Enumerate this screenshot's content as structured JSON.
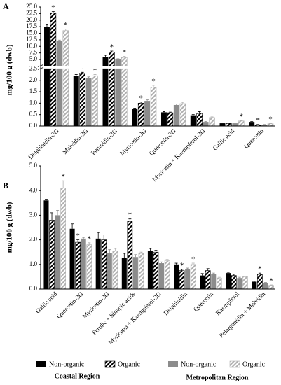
{
  "panel_labels": [
    "A",
    "B"
  ],
  "region_labels": [
    "Coastal Region",
    "Metropolitan Region"
  ],
  "significance_mark": "*",
  "chart_data": [
    {
      "type": "bar",
      "y_label": "mg/100 g (dwb)",
      "ybreak": 2.5,
      "categories": [
        "Delphinidin-3G",
        "Malvidin-3G",
        "Petunidin-3G",
        "Myricetin-3G",
        "Quercetin-3G",
        "Myricetin + Kaempferol-3G",
        "Gallic acid",
        "Quercetin"
      ],
      "series": [
        {
          "name": "Non-organic",
          "color": "#000000",
          "pattern": "solid",
          "values": [
            17.5,
            2.2,
            6.0,
            0.75,
            0.6,
            0.47,
            0.12,
            0.18
          ],
          "errors": [
            1.0,
            0.05,
            0.6,
            0.03,
            0.03,
            0.03,
            0.01,
            0.02
          ],
          "significant": []
        },
        {
          "name": "Organic",
          "color": "#000000",
          "pattern": "hatch",
          "values": [
            22.8,
            2.3,
            7.8,
            1.0,
            0.58,
            0.55,
            0.11,
            0.05
          ],
          "errors": [
            0.5,
            0.05,
            0.4,
            0.05,
            0.03,
            0.08,
            0.01,
            0.02
          ],
          "significant": [
            0,
            1,
            2,
            3,
            7
          ]
        },
        {
          "name": "Non-organic",
          "color": "#8c8c8c",
          "pattern": "solid",
          "values": [
            12.0,
            2.1,
            5.0,
            1.1,
            0.92,
            0.18,
            0.12,
            0.06
          ],
          "errors": [
            0.4,
            0.05,
            0.3,
            0.05,
            0.05,
            0.02,
            0.01,
            0.01
          ],
          "significant": []
        },
        {
          "name": "Organic",
          "color": "#b0b0b0",
          "pattern": "hatch",
          "values": [
            16.0,
            2.2,
            5.8,
            1.7,
            0.98,
            0.37,
            0.22,
            0.1
          ],
          "errors": [
            0.6,
            0.05,
            0.4,
            0.08,
            0.06,
            0.03,
            0.02,
            0.02
          ],
          "significant": [
            0,
            1,
            2,
            3,
            6,
            7
          ]
        }
      ],
      "ylim": [
        0,
        25
      ],
      "yticks": [
        {
          "value": 0,
          "label": "0.0"
        },
        0.5,
        {
          "value": 1,
          "label": "1.0"
        },
        1.5,
        {
          "value": 2,
          "label": "2.0"
        },
        2.5,
        {
          "value": 5,
          "label": "5.0"
        },
        7.5,
        {
          "value": 10,
          "label": "10.0"
        },
        12.5,
        {
          "value": 15,
          "label": "15.0"
        },
        17.5,
        {
          "value": 20,
          "label": "20.0"
        },
        22.5,
        {
          "value": 25,
          "label": "25.0"
        }
      ]
    },
    {
      "type": "bar",
      "y_label": "mg/100 g (dwb)",
      "categories": [
        "Gallic acid",
        "Quercetin-3G",
        "Myricetin-3G",
        "Ferulic + Sinapic acids",
        "Myricetin + Kaempferol-3G",
        "Delphinidin",
        "Quercetin",
        "Kaempferol",
        "Pelargonidin + Malvidin"
      ],
      "series": [
        {
          "name": "Non-organic",
          "color": "#000000",
          "pattern": "solid",
          "values": [
            3.6,
            2.45,
            2.05,
            1.25,
            1.55,
            1.0,
            0.55,
            0.65,
            0.3
          ],
          "errors": [
            0.05,
            0.2,
            0.25,
            0.2,
            0.1,
            0.05,
            0.08,
            0.03,
            0.03
          ],
          "significant": []
        },
        {
          "name": "Organic",
          "color": "#000000",
          "pattern": "hatch",
          "values": [
            2.8,
            1.9,
            2.0,
            2.75,
            1.5,
            0.75,
            0.75,
            0.55,
            0.6
          ],
          "errors": [
            0.3,
            0.1,
            0.2,
            0.1,
            0.08,
            0.05,
            0.08,
            0.05,
            0.05
          ],
          "significant": [
            1,
            3,
            5,
            8
          ]
        },
        {
          "name": "Non-organic",
          "color": "#8c8c8c",
          "pattern": "solid",
          "values": [
            3.0,
            2.05,
            1.45,
            1.3,
            1.05,
            0.8,
            0.6,
            0.45,
            0.25
          ],
          "errors": [
            0.2,
            0.05,
            0.15,
            0.1,
            0.05,
            0.05,
            0.05,
            0.03,
            0.02
          ],
          "significant": []
        },
        {
          "name": "Organic",
          "color": "#b0b0b0",
          "pattern": "hatch",
          "values": [
            4.1,
            1.8,
            1.55,
            1.45,
            1.15,
            1.0,
            0.45,
            0.5,
            0.15
          ],
          "errors": [
            0.3,
            0.08,
            0.1,
            0.05,
            0.05,
            0.05,
            0.03,
            0.03,
            0.02
          ],
          "significant": [
            0,
            1,
            5,
            8
          ]
        }
      ],
      "ylim": [
        0,
        5
      ],
      "yticks": [
        {
          "value": 0,
          "label": "0.0"
        },
        {
          "value": 1,
          "label": "1.0"
        },
        {
          "value": 2,
          "label": "2.0"
        },
        {
          "value": 3,
          "label": "3.0"
        },
        {
          "value": 4,
          "label": "4.0"
        },
        {
          "value": 5,
          "label": "5.0"
        }
      ]
    }
  ]
}
